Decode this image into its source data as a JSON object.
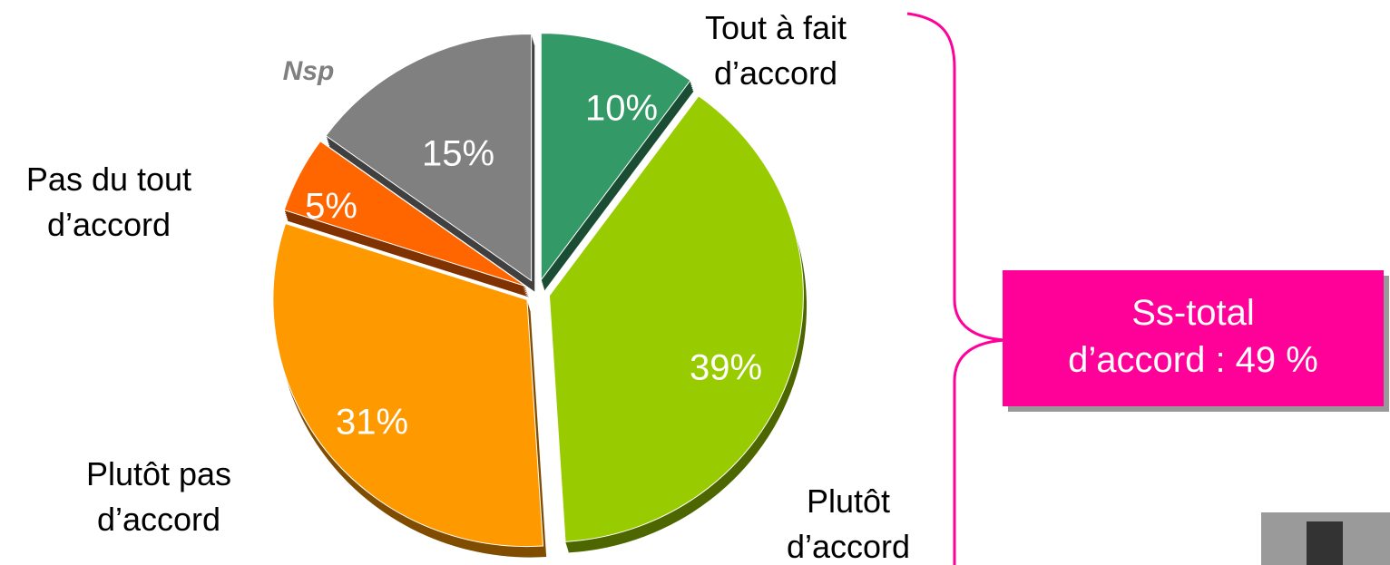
{
  "chart_data": {
    "type": "pie",
    "categories": [
      "Tout à fait\nd’accord",
      "Plutôt\nd’accord",
      "Plutôt pas\nd’accord",
      "Pas du tout\nd’accord",
      "Nsp"
    ],
    "values": [
      10,
      39,
      31,
      5,
      15
    ],
    "value_labels": [
      "10%",
      "39%",
      "31%",
      "5%",
      "15%"
    ],
    "colors": [
      "#339966",
      "#99cc00",
      "#ff9900",
      "#ff6600",
      "#808080"
    ],
    "annotation": "Ss-total\nd’accord : 49 %",
    "annotation_color": "#ff0099"
  }
}
